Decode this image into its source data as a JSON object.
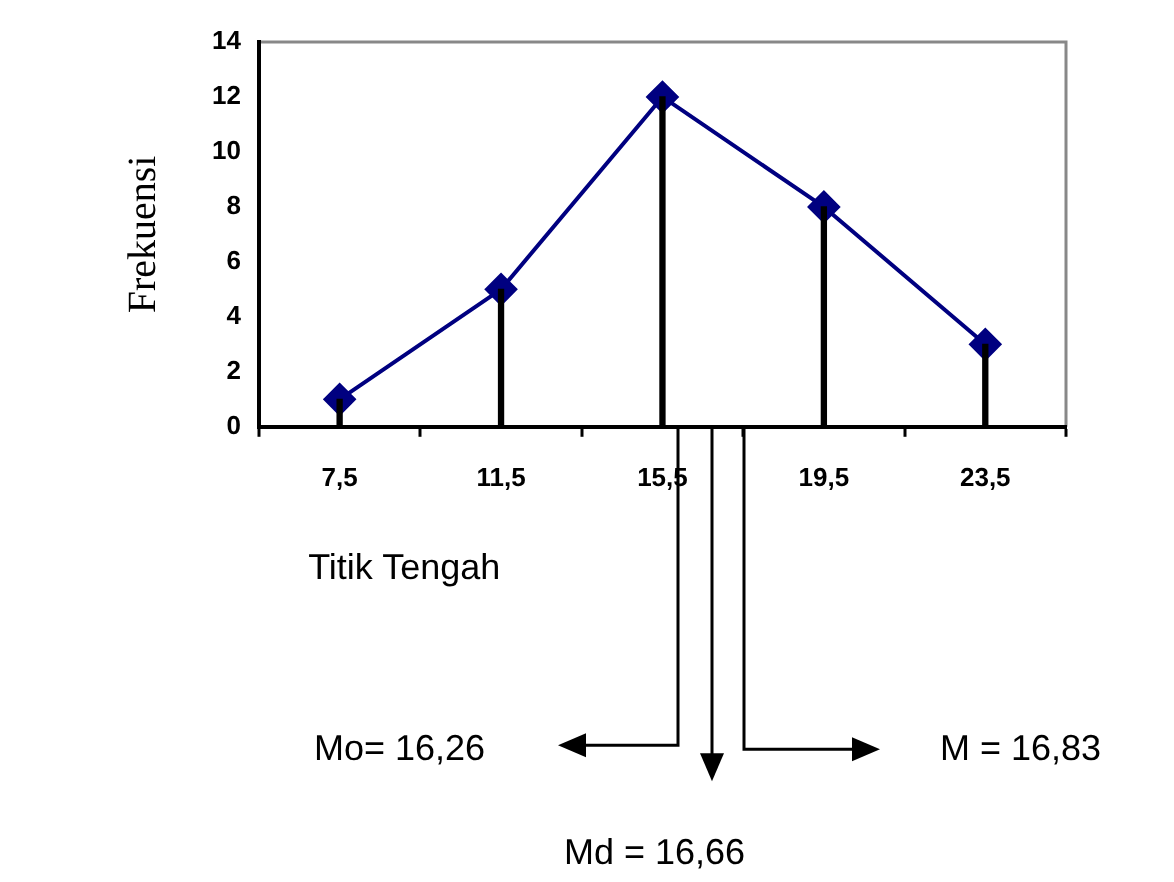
{
  "chart_data": {
    "type": "line",
    "xlabel": "Titik Tengah",
    "ylabel": "Frekuensi",
    "categories": [
      "7,5",
      "11,5",
      "15,5",
      "19,5",
      "23,5"
    ],
    "series": [
      {
        "type": "bar",
        "color": "#000000",
        "values": [
          1,
          5,
          12,
          8,
          3
        ]
      },
      {
        "color": "#000080",
        "values": [
          1,
          5,
          12,
          8,
          3
        ]
      }
    ],
    "marker": "diamond",
    "ylim": [
      0,
      14
    ],
    "yticks": [
      0,
      2,
      4,
      6,
      8,
      10,
      12,
      14
    ],
    "grid": false,
    "legend": false,
    "annotations": [
      "Mo= 16,26",
      "Md = 16,66",
      "M = 16,83"
    ]
  }
}
